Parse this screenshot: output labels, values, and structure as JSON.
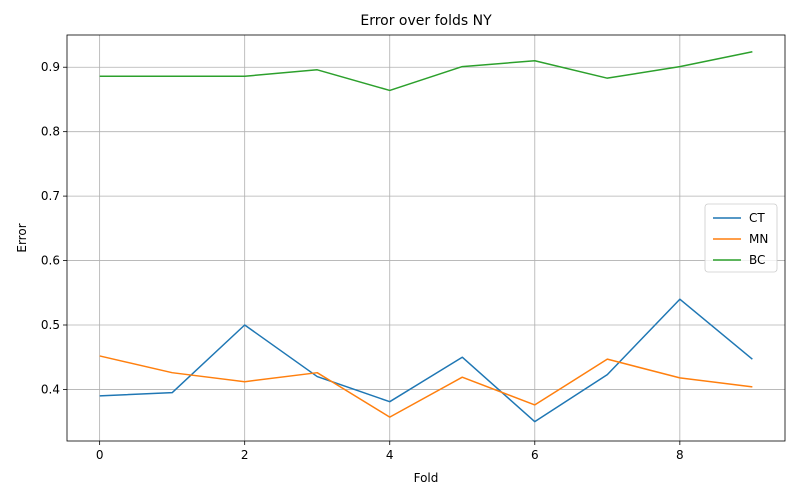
{
  "chart_data": {
    "type": "line",
    "title": "Error over folds NY",
    "xlabel": "Fold",
    "ylabel": "Error",
    "x": [
      0,
      1,
      2,
      3,
      4,
      5,
      6,
      7,
      8,
      9
    ],
    "xlim": [
      -0.45,
      9.45
    ],
    "ylim": [
      0.32,
      0.95
    ],
    "xticks": [
      0,
      2,
      4,
      6,
      8
    ],
    "yticks": [
      0.4,
      0.5,
      0.6,
      0.7,
      0.8,
      0.9
    ],
    "grid": true,
    "legend_position": "center-right",
    "series": [
      {
        "name": "CT",
        "color": "#1f77b4",
        "values": [
          0.39,
          0.395,
          0.5,
          0.42,
          0.381,
          0.45,
          0.35,
          0.423,
          0.54,
          0.447
        ]
      },
      {
        "name": "MN",
        "color": "#ff7f0e",
        "values": [
          0.452,
          0.426,
          0.412,
          0.426,
          0.357,
          0.419,
          0.376,
          0.447,
          0.418,
          0.404
        ]
      },
      {
        "name": "BC",
        "color": "#2ca02c",
        "values": [
          0.886,
          0.886,
          0.886,
          0.896,
          0.864,
          0.901,
          0.91,
          0.883,
          0.901,
          0.924
        ]
      }
    ]
  }
}
